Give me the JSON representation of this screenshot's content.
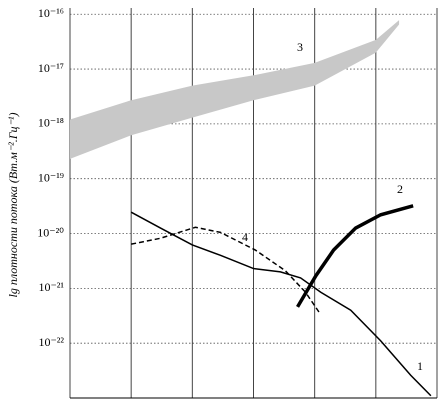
{
  "chart_data": {
    "type": "line",
    "ylabel": "lg плотности потока (Вт.м⁻².Гц⁻¹)",
    "ylog": true,
    "xlim": [
      0,
      6
    ],
    "xticks": [
      0,
      1,
      2,
      3,
      4,
      5,
      6
    ],
    "ylim": [
      1e-23,
      1.3e-16
    ],
    "yticks": [
      {
        "value": 1e-16,
        "label": "10⁻¹⁶"
      },
      {
        "value": 1e-17,
        "label": "10⁻¹⁷"
      },
      {
        "value": 1e-18,
        "label": "10⁻¹⁸"
      },
      {
        "value": 1e-19,
        "label": "10⁻¹⁹"
      },
      {
        "value": 1e-20,
        "label": "10⁻²⁰"
      },
      {
        "value": 1e-21,
        "label": "10⁻²¹"
      },
      {
        "value": 1e-22,
        "label": "10⁻²²"
      }
    ],
    "grid": true,
    "series": [
      {
        "name": "1",
        "color": "#000000",
        "style": "solid",
        "width": 1.5,
        "x": [
          1.0,
          1.48,
          2.0,
          2.46,
          3.0,
          3.44,
          3.77,
          4.1,
          4.59,
          5.08,
          5.57,
          5.9
        ],
        "values": [
          2.45e-20,
          1.26e-20,
          6.2e-21,
          4e-21,
          2.3e-21,
          2e-21,
          1.55e-21,
          8.5e-22,
          4e-22,
          1.1e-22,
          2.6e-23,
          1.1e-23
        ]
      },
      {
        "name": "2",
        "color": "#000000",
        "style": "solid",
        "width": 3.5,
        "x": [
          3.72,
          4.02,
          4.31,
          4.67,
          5.08,
          5.61
        ],
        "values": [
          4.6e-22,
          1.7e-21,
          5e-21,
          1.26e-20,
          2.2e-20,
          3.2e-20
        ]
      },
      {
        "name": "3",
        "color": "#c8c8c8",
        "style": "band",
        "x": [
          0,
          1,
          2,
          3,
          4,
          5,
          5.38
        ],
        "low": [
          2.3e-19,
          6.2e-19,
          1.3e-18,
          2.7e-18,
          5e-18,
          2e-17,
          6.5e-17
        ],
        "high": [
          1.2e-18,
          2.7e-18,
          5e-18,
          7.7e-18,
          1.3e-17,
          3.4e-17,
          7.8e-17
        ]
      },
      {
        "name": "4",
        "color": "#000000",
        "style": "dashed",
        "width": 1.5,
        "x": [
          1.0,
          1.48,
          2.05,
          2.46,
          3.03,
          3.52,
          3.85,
          4.07
        ],
        "values": [
          6.4e-21,
          8.2e-21,
          1.3e-20,
          1.05e-20,
          5e-21,
          2.1e-21,
          8.5e-22,
          3.7e-22
        ]
      }
    ]
  }
}
